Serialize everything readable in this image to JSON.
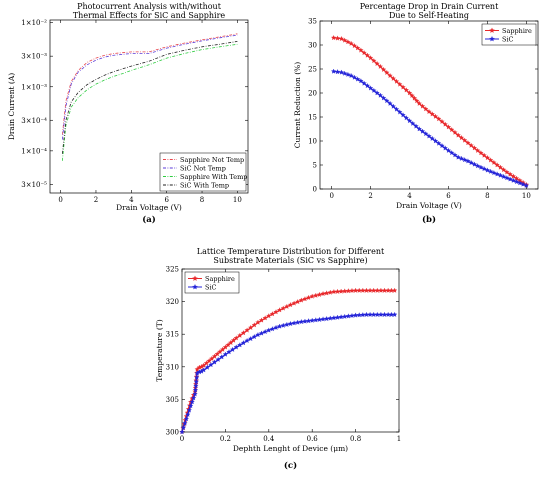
{
  "chart_data": [
    {
      "type": "line",
      "panel_label": "(a)",
      "title": [
        "Photocurrent Analysis with/without",
        "Thermal Effects for SiC and Sapphire"
      ],
      "xlabel": "Drain Voltage (V)",
      "ylabel": "Drain Current (A)",
      "xlim": [
        -0.6,
        10.6
      ],
      "x_ticks": [
        "0",
        "2",
        "4",
        "6",
        "8",
        "10"
      ],
      "y_scale": "log",
      "ylim": [
        2.2e-05,
        0.011
      ],
      "y_ticks": [
        {
          "value": 3e-05,
          "label": "3×10⁻⁵"
        },
        {
          "value": 0.0001,
          "label": "1×10⁻⁴"
        },
        {
          "value": 0.0003,
          "label": "3×10⁻⁴"
        },
        {
          "value": 0.001,
          "label": "1×10⁻³"
        },
        {
          "value": 0.003,
          "label": "3×10⁻³"
        },
        {
          "value": 0.01,
          "label": "1×10⁻²"
        }
      ],
      "grid": false,
      "legend_position": "bottom-right",
      "series": [
        {
          "name": "Sapphire Not Temp",
          "color": "#e8474e",
          "dash": "dashdot",
          "x": [
            0.1,
            0.3,
            0.6,
            1.0,
            1.5,
            2.0,
            2.5,
            3.0,
            3.5,
            4.0,
            5.0,
            6.0,
            7.0,
            8.0,
            9.0,
            10.0
          ],
          "y": [
            0.00018,
            0.0006,
            0.0012,
            0.0018,
            0.0024,
            0.0028,
            0.0031,
            0.0033,
            0.0034,
            0.0035,
            0.0035,
            0.0042,
            0.0048,
            0.0054,
            0.006,
            0.0067
          ]
        },
        {
          "name": "SiC Not Temp",
          "color": "#5b3bd8",
          "dash": "dashdot",
          "x": [
            0.1,
            0.3,
            0.6,
            1.0,
            1.5,
            2.0,
            2.5,
            3.0,
            3.5,
            4.0,
            5.0,
            6.0,
            7.0,
            8.0,
            9.0,
            10.0
          ],
          "y": [
            0.00015,
            0.0005,
            0.0011,
            0.0017,
            0.0022,
            0.0026,
            0.0029,
            0.0031,
            0.0032,
            0.0033,
            0.0033,
            0.004,
            0.0046,
            0.0052,
            0.0058,
            0.0064
          ]
        },
        {
          "name": "Sapphire With Temp",
          "color": "#2ecc40",
          "dash": "dashdot",
          "x": [
            0.1,
            0.3,
            0.6,
            1.0,
            1.5,
            2.0,
            2.5,
            3.0,
            3.5,
            4.0,
            5.0,
            6.0,
            7.0,
            8.0,
            9.0,
            10.0
          ],
          "y": [
            7e-05,
            0.00025,
            0.00048,
            0.00068,
            0.0009,
            0.0011,
            0.00128,
            0.00145,
            0.0016,
            0.0018,
            0.0022,
            0.0028,
            0.0033,
            0.0038,
            0.0042,
            0.0046
          ]
        },
        {
          "name": "SiC With Temp",
          "color": "#222222",
          "dash": "dashdot",
          "x": [
            0.1,
            0.3,
            0.6,
            1.0,
            1.5,
            2.0,
            2.5,
            3.0,
            3.5,
            4.0,
            5.0,
            6.0,
            7.0,
            8.0,
            9.0,
            10.0
          ],
          "y": [
            9e-05,
            0.0003,
            0.00058,
            0.00082,
            0.00108,
            0.0013,
            0.00152,
            0.00172,
            0.0019,
            0.0021,
            0.0025,
            0.0032,
            0.0037,
            0.0042,
            0.0046,
            0.0051
          ]
        }
      ]
    },
    {
      "type": "line",
      "panel_label": "(b)",
      "title": [
        "Percentage Drop in Drain Current",
        "Due to Self-Heating"
      ],
      "xlabel": "Drain Voltage (V)",
      "ylabel": "Current Reduction (%)",
      "xlim": [
        -0.6,
        10.6
      ],
      "x_ticks": [
        "0",
        "2",
        "4",
        "6",
        "8",
        "10"
      ],
      "ylim": [
        0,
        35
      ],
      "y_ticks": [
        "0",
        "5",
        "10",
        "15",
        "20",
        "25",
        "30",
        "35"
      ],
      "grid": false,
      "legend_position": "top-right",
      "series": [
        {
          "name": "Sapphire",
          "color": "#e8282b",
          "marker": "star",
          "x": [
            0.1,
            0.5,
            1.0,
            1.5,
            2.0,
            2.5,
            3.0,
            3.5,
            4.0,
            4.5,
            5.0,
            5.5,
            6.0,
            6.5,
            7.0,
            7.5,
            8.0,
            8.5,
            9.0,
            9.5,
            10.0
          ],
          "y": [
            31.5,
            31.3,
            30.3,
            28.9,
            27.3,
            25.5,
            23.6,
            21.8,
            20.0,
            17.8,
            16.1,
            14.6,
            12.9,
            11.2,
            9.6,
            8.0,
            6.5,
            5.0,
            3.5,
            2.2,
            0.9
          ]
        },
        {
          "name": "SiC",
          "color": "#2424d8",
          "marker": "star",
          "x": [
            0.1,
            0.5,
            1.0,
            1.5,
            2.0,
            2.5,
            3.0,
            3.5,
            4.0,
            4.5,
            5.0,
            5.5,
            6.0,
            6.5,
            7.0,
            7.5,
            8.0,
            8.5,
            9.0,
            9.5,
            10.0
          ],
          "y": [
            24.5,
            24.3,
            23.6,
            22.5,
            21.0,
            19.5,
            17.8,
            16.0,
            14.2,
            12.5,
            11.0,
            9.5,
            8.0,
            6.6,
            5.8,
            4.8,
            3.9,
            3.1,
            2.3,
            1.5,
            0.7
          ]
        }
      ]
    },
    {
      "type": "line",
      "panel_label": "(c)",
      "title": [
        "Lattice Temperature Distribution for Different",
        "Substrate Materials (SiC vs Sapphire)"
      ],
      "xlabel": "Dephth Lenght of Device (μm)",
      "ylabel": "Temperature (T)",
      "xlim": [
        0,
        1
      ],
      "x_ticks": [
        "0",
        "0.2",
        "0.4",
        "0.6",
        "0.8",
        "1"
      ],
      "ylim": [
        300,
        325
      ],
      "y_ticks": [
        "300",
        "305",
        "310",
        "315",
        "320",
        "325"
      ],
      "grid": false,
      "legend_position": "top-left",
      "series": [
        {
          "name": "Sapphire",
          "color": "#e8282b",
          "marker": "star",
          "x": [
            0.0,
            0.02,
            0.04,
            0.06,
            0.07,
            0.08,
            0.09,
            0.1,
            0.15,
            0.2,
            0.25,
            0.3,
            0.35,
            0.4,
            0.45,
            0.5,
            0.55,
            0.6,
            0.65,
            0.7,
            0.75,
            0.8,
            0.85,
            0.9,
            0.95,
            0.98
          ],
          "y": [
            300.0,
            302.4,
            304.6,
            306.2,
            309.6,
            309.9,
            310.0,
            310.2,
            311.6,
            313.0,
            314.4,
            315.6,
            316.8,
            317.8,
            318.7,
            319.5,
            320.2,
            320.8,
            321.2,
            321.5,
            321.6,
            321.7,
            321.7,
            321.7,
            321.7,
            321.7
          ]
        },
        {
          "name": "SiC",
          "color": "#2424d8",
          "marker": "star",
          "x": [
            0.0,
            0.02,
            0.04,
            0.06,
            0.07,
            0.08,
            0.09,
            0.1,
            0.15,
            0.2,
            0.25,
            0.3,
            0.35,
            0.4,
            0.45,
            0.5,
            0.55,
            0.6,
            0.65,
            0.7,
            0.75,
            0.8,
            0.85,
            0.9,
            0.95,
            0.98
          ],
          "y": [
            300.0,
            302.0,
            304.0,
            305.8,
            309.0,
            309.2,
            309.3,
            309.5,
            310.7,
            311.9,
            313.0,
            314.0,
            314.9,
            315.6,
            316.2,
            316.6,
            316.9,
            317.1,
            317.3,
            317.5,
            317.7,
            317.9,
            318.0,
            318.0,
            318.0,
            318.0
          ]
        }
      ]
    }
  ]
}
